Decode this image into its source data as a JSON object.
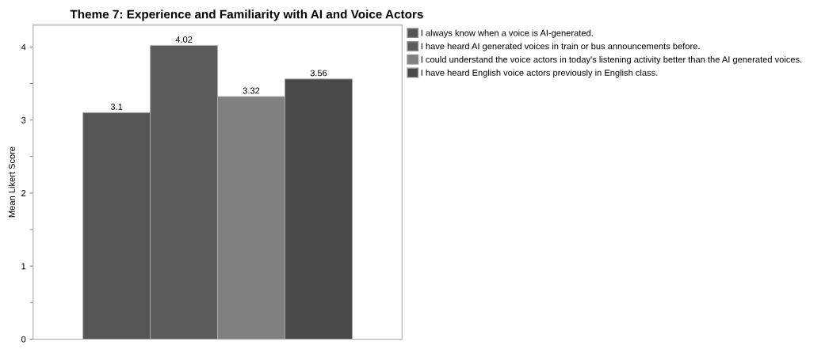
{
  "chart_data": {
    "type": "bar",
    "title": "Theme 7: Experience and Familiarity with AI and Voice Actors",
    "ylabel": "Mean Likert Score",
    "categories": [
      null
    ],
    "series": [
      {
        "name": "I always know when a voice is AI-generated.",
        "color": "#555555",
        "values": [
          3.1
        ]
      },
      {
        "name": "I have heard AI generated voices in train or bus announcements before.",
        "color": "#5c5c5c",
        "values": [
          4.02
        ]
      },
      {
        "name": "I could understand the voice actors in today's listening activity better than the AI generated voices.",
        "color": "#808080",
        "values": [
          3.32
        ]
      },
      {
        "name": "I have heard English voice actors previously in English class.",
        "color": "#494949",
        "values": [
          3.56
        ]
      }
    ],
    "ylim": [
      0,
      4.3
    ],
    "yticks": [
      0,
      {
        "value": 0.5,
        "label": null
      },
      1,
      {
        "value": 1.5,
        "label": null
      },
      2,
      {
        "value": 2.5,
        "label": null
      },
      3,
      {
        "value": 3.5,
        "label": null
      },
      4
    ],
    "data_labels": true,
    "legend": "top right",
    "grid": false,
    "tick_labels": "y"
  }
}
